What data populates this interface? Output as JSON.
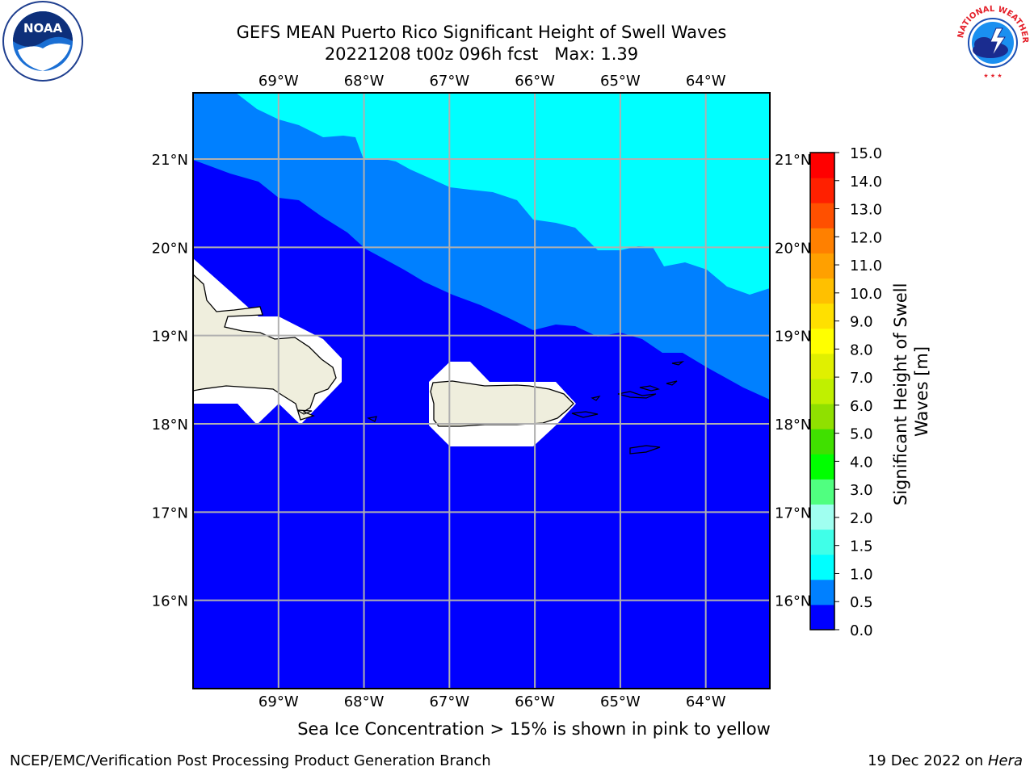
{
  "header": {
    "title_line1": "GEFS MEAN Puerto Rico Significant Height of Swell Waves",
    "title_line2": "20221208 t00z 096h fcst   Max: 1.39"
  },
  "logos": {
    "left": {
      "name": "noaa-logo",
      "text": "NOAA",
      "ring_text": "NATIONAL OCEANIC AND ATMOSPHERIC ADMINISTRATION · U.S. DEPARTMENT OF COMMERCE"
    },
    "right": {
      "name": "nws-logo",
      "ring_text": "NATIONAL WEATHER SERVICE"
    }
  },
  "map": {
    "lon_labels": [
      "69°W",
      "68°W",
      "67°W",
      "66°W",
      "65°W",
      "64°W"
    ],
    "lat_labels": [
      "21°N",
      "20°N",
      "19°N",
      "18°N",
      "17°N",
      "16°N"
    ],
    "lon_range": [
      -70.0,
      -63.25
    ],
    "lat_range": [
      15.0,
      21.75
    ],
    "field_colors": {
      "band_0_0_5": "#0000ff",
      "band_0_5_1_0": "#0080ff",
      "band_1_0_1_5": "#00ffff",
      "land": "#efeedd",
      "masked": "#ffffff",
      "grid": "#b0b0b0",
      "coast": "#000000"
    }
  },
  "colorbar": {
    "label": "Significant Height of Swell Waves [m]",
    "label_line1": "Significant Height of Swell",
    "label_line2": "Waves [m]",
    "ticks": [
      "15.0",
      "14.0",
      "13.0",
      "12.0",
      "11.0",
      "10.0",
      "9.0",
      "8.0",
      "7.0",
      "6.0",
      "5.0",
      "4.0",
      "3.0",
      "2.0",
      "1.5",
      "1.0",
      "0.5",
      "0.0"
    ],
    "colors_bottom_to_top": [
      "#0000ff",
      "#0080ff",
      "#00ffff",
      "#40ffe8",
      "#a0fff0",
      "#50ff80",
      "#00ff00",
      "#40e000",
      "#90e000",
      "#c0f000",
      "#e0f000",
      "#ffff00",
      "#ffe000",
      "#ffc000",
      "#ffa000",
      "#ff8000",
      "#ff5000",
      "#ff2000",
      "#ff0000"
    ]
  },
  "caption": "Sea Ice Concentration > 15% is shown in pink to yellow",
  "footer": {
    "left": "NCEP/EMC/Verification Post Processing Product Generation Branch",
    "right_date": "19 Dec 2022 on ",
    "right_machine": "Hera"
  }
}
